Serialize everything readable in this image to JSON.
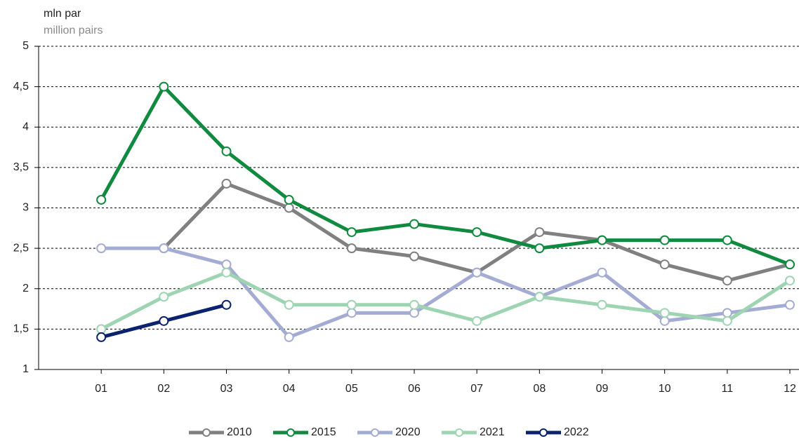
{
  "chart_data": {
    "type": "line",
    "y_label_primary": "mln par",
    "y_label_secondary": "million pairs",
    "categories": [
      "01",
      "02",
      "03",
      "04",
      "05",
      "06",
      "07",
      "08",
      "09",
      "10",
      "11",
      "12"
    ],
    "series": [
      {
        "name": "2010",
        "color": "#808080",
        "values": [
          null,
          2.5,
          3.3,
          3.0,
          2.5,
          2.4,
          2.2,
          2.7,
          2.6,
          2.3,
          2.1,
          2.3
        ]
      },
      {
        "name": "2015",
        "color": "#0f8a3f",
        "values": [
          3.1,
          4.5,
          3.7,
          3.1,
          2.7,
          2.8,
          2.7,
          2.5,
          2.6,
          2.6,
          2.6,
          2.3
        ]
      },
      {
        "name": "2020",
        "color": "#a4acd4",
        "values": [
          2.5,
          2.5,
          2.3,
          1.4,
          1.7,
          1.7,
          2.2,
          1.9,
          2.2,
          1.6,
          1.7,
          1.8
        ]
      },
      {
        "name": "2021",
        "color": "#9ed4b2",
        "values": [
          1.5,
          1.9,
          2.2,
          1.8,
          1.8,
          1.8,
          1.6,
          1.9,
          1.8,
          1.7,
          1.6,
          2.1
        ]
      },
      {
        "name": "2022",
        "color": "#0b2270",
        "values": [
          1.4,
          1.6,
          1.8,
          null,
          null,
          null,
          null,
          null,
          null,
          null,
          null,
          null
        ]
      }
    ],
    "ylim": [
      1,
      5
    ],
    "yticks": [
      1,
      {
        "value": 1.5,
        "label": "1,5"
      },
      2,
      {
        "value": 2.5,
        "label": "2,5"
      },
      3,
      {
        "value": 3.5,
        "label": "3,5"
      },
      4,
      {
        "value": 4.5,
        "label": "4,5"
      },
      5
    ],
    "grid": true
  }
}
